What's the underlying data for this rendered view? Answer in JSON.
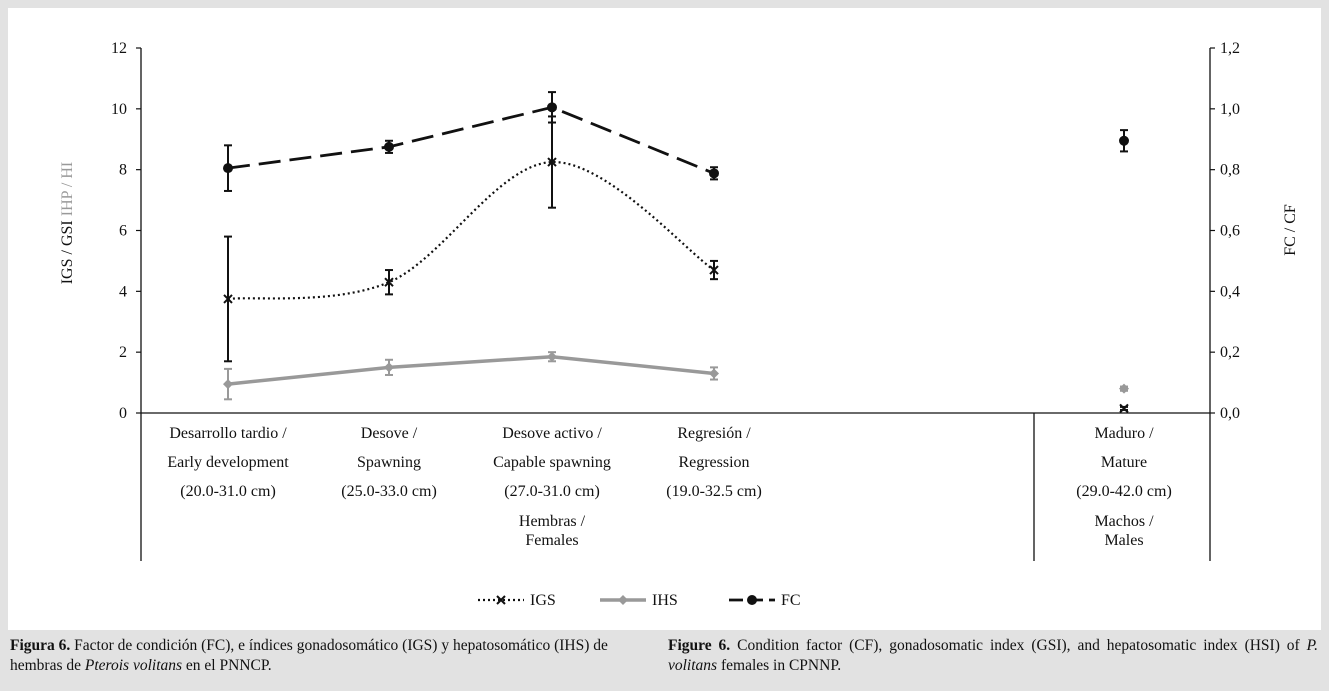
{
  "chart_data": {
    "type": "line",
    "y_left": {
      "label_part1": "IGS / GSI",
      "label_part2": "IHP / HI",
      "ticks": [
        "0",
        "2",
        "4",
        "6",
        "8",
        "10",
        "12"
      ],
      "range": [
        0,
        12
      ]
    },
    "y_right": {
      "label": "FC / CF",
      "ticks": [
        "0,0",
        "0,2",
        "0,4",
        "0,6",
        "0,8",
        "1,0",
        "1,2"
      ],
      "range": [
        0,
        1.2
      ]
    },
    "categories": [
      {
        "line1": "Desarrollo tardio /",
        "line2": "Early development",
        "line3": "(20.0-31.0 cm)"
      },
      {
        "line1": "Desove /",
        "line2": "Spawning",
        "line3": "(25.0-33.0 cm)"
      },
      {
        "line1": "Desove activo /",
        "line2": "Capable spawning",
        "line3": "(27.0-31.0 cm)"
      },
      {
        "line1": "Regresión /",
        "line2": "Regression",
        "line3": "(19.0-32.5 cm)"
      },
      {
        "line1": "Maduro /",
        "line2": "Mature",
        "line3": "(29.0-42.0 cm)"
      }
    ],
    "groups": [
      {
        "line1": "Hembras /",
        "line2": "Females"
      },
      {
        "line1": "Machos /",
        "line2": "Males"
      }
    ],
    "series": [
      {
        "name": "IGS",
        "axis": "left",
        "color": "#111111",
        "style": "dotted",
        "marker": "x",
        "females": [
          3.75,
          4.3,
          8.25,
          4.7
        ],
        "females_err": [
          2.05,
          0.4,
          1.5,
          0.3
        ],
        "males": 0.15,
        "males_err": 0.05
      },
      {
        "name": "IHS",
        "axis": "left",
        "color": "#999999",
        "style": "solid",
        "marker": "diamond",
        "females": [
          0.95,
          1.5,
          1.85,
          1.3
        ],
        "females_err": [
          0.5,
          0.25,
          0.15,
          0.2
        ],
        "males": 0.8,
        "males_err": 0.07
      },
      {
        "name": "FC",
        "axis": "right",
        "color": "#111111",
        "style": "dashed",
        "marker": "circle",
        "females": [
          0.805,
          0.875,
          1.005,
          0.788
        ],
        "females_err": [
          0.075,
          0.02,
          0.05,
          0.02
        ],
        "males": 0.895,
        "males_err": 0.035
      }
    ],
    "legend_position": "bottom"
  },
  "caption_es": {
    "bold": "Figura 6.",
    "text1": " Factor de condición (FC), e índices gonadosomático (IGS) y hepatosomático (IHS) de hembras de ",
    "italic": "Pterois volitans",
    "text2": " en el PNNCP."
  },
  "caption_en": {
    "bold": "Figure 6.",
    "text1": " Condition factor (CF), gonadosomatic index (GSI), and hepatosomatic index (HSI) of ",
    "italic": "P. volitans",
    "text2": " females in CPNNP."
  }
}
